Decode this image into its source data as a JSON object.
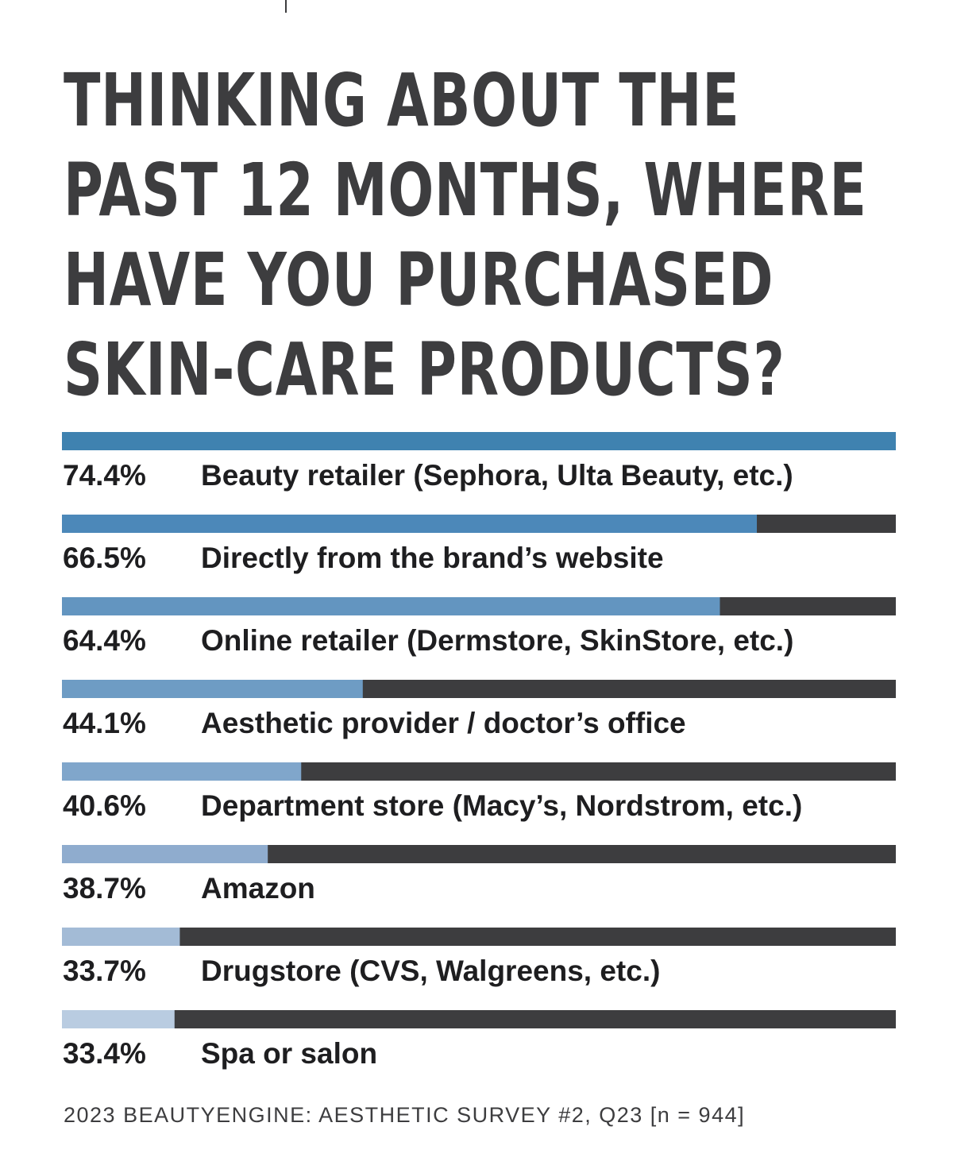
{
  "chart_data": {
    "type": "bar",
    "orientation": "horizontal",
    "title_lines": [
      "THINKING ABOUT THE",
      "PAST 12 MONTHS, WHERE",
      "HAVE YOU PURCHASED",
      "SKIN-CARE PRODUCTS?"
    ],
    "categories": [
      "Beauty retailer (Sephora, Ulta Beauty, etc.)",
      "Directly from the brand’s website",
      "Online retailer (Dermstore, SkinStore, etc.)",
      "Aesthetic provider / doctor’s office",
      "Department store (Macy’s, Nordstrom, etc.)",
      "Amazon",
      "Drugstore (CVS, Walgreens, etc.)",
      "Spa or salon"
    ],
    "values": [
      74.4,
      66.5,
      64.4,
      44.1,
      40.6,
      38.7,
      33.7,
      33.4
    ],
    "value_labels": [
      "74.4%",
      "66.5%",
      "64.4%",
      "44.1%",
      "40.6%",
      "38.7%",
      "33.7%",
      "33.4%"
    ],
    "xlim": [
      27,
      74.4
    ],
    "unit": "%",
    "source": "2023 BEAUTYENGINE: AESTHETIC SURVEY #2, Q23 [n = 944]"
  },
  "colors": {
    "track": "#3d3d3f",
    "text": "#1e1e20",
    "bar_fills": [
      "#3f82b0",
      "#4c88b9",
      "#6395c0",
      "#6e9cc4",
      "#80a6cb",
      "#8facce",
      "#a3bbd6",
      "#b9cce1"
    ]
  }
}
